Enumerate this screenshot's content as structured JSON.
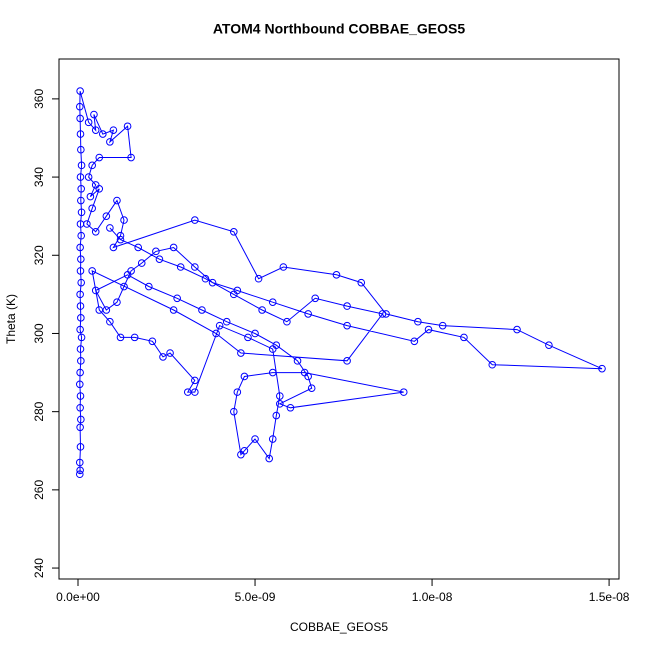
{
  "chart_data": {
    "type": "line",
    "markers": true,
    "title": "ATOM4 Northbound COBBAE_GEOS5",
    "x_label": "COBBAE_GEOS5",
    "y_label": "Theta (K)",
    "color": "#0000ff",
    "xlim": [
      -5.37e-10,
      1.528e-08
    ],
    "xticks": [
      {
        "value": 0,
        "label": "0.0e+00"
      },
      {
        "value": 5e-09,
        "label": "5.0e-09"
      },
      {
        "value": 1e-08,
        "label": "1.0e-08"
      },
      {
        "value": 1.5e-08,
        "label": "1.5e-08"
      }
    ],
    "ylim": [
      237.2,
      370.2
    ],
    "yticks": [
      240,
      260,
      280,
      300,
      320,
      340,
      360
    ],
    "x": [
      5e-11,
      6e-11,
      5e-11,
      7e-11,
      6e-11,
      8e-11,
      6e-11,
      7e-11,
      5e-11,
      6e-11,
      8e-11,
      7e-11,
      1e-10,
      6e-11,
      8e-11,
      7e-11,
      6e-11,
      9e-11,
      7e-11,
      8e-11,
      6e-11,
      9e-11,
      7e-11,
      1e-10,
      8e-11,
      9e-11,
      7e-11,
      1e-10,
      8e-11,
      7e-11,
      6e-11,
      5e-11,
      6e-11,
      3e-10,
      5e-10,
      4.5e-10,
      7e-10,
      1e-09,
      9e-10,
      1.4e-09,
      1.5e-09,
      6e-10,
      4e-10,
      3e-10,
      5e-10,
      3.5e-10,
      6e-10,
      4e-10,
      2.5e-10,
      5e-10,
      8e-10,
      1.1e-09,
      1.3e-09,
      1.2e-09,
      1e-09,
      3.3e-09,
      4.4e-09,
      5.1e-09,
      5.8e-09,
      7.3e-09,
      8e-09,
      8.7e-09,
      9.6e-09,
      1.03e-08,
      1.24e-08,
      1.33e-08,
      1.48e-08,
      1.17e-08,
      1.09e-08,
      9.9e-09,
      9.5e-09,
      7.6e-09,
      6.5e-09,
      5.5e-09,
      4.5e-09,
      3.8e-09,
      3.3e-09,
      2.7e-09,
      2.2e-09,
      1.8e-09,
      1.5e-09,
      1.3e-09,
      1.1e-09,
      8e-10,
      5e-10,
      1.4e-09,
      2e-09,
      2.8e-09,
      3.5e-09,
      4.2e-09,
      5e-09,
      5.6e-09,
      6.2e-09,
      6.5e-09,
      6.6e-09,
      5.7e-09,
      6e-09,
      9.2e-09,
      6.4e-09,
      5.5e-09,
      4.7e-09,
      4.5e-09,
      4.4e-09,
      4.6e-09,
      4.7e-09,
      5e-09,
      5.4e-09,
      5.5e-09,
      5.6e-09,
      5.7e-09,
      5.5e-09,
      4.8e-09,
      4e-09,
      3.3e-09,
      3.1e-09,
      3.3e-09,
      2.6e-09,
      2.4e-09,
      2.1e-09,
      1.6e-09,
      1.2e-09,
      9e-10,
      6e-10,
      4e-10,
      2.7e-09,
      3.9e-09,
      4.6e-09,
      7.6e-09,
      8.6e-09,
      7.6e-09,
      6.7e-09,
      5.9e-09,
      5.2e-09,
      4.4e-09,
      3.6e-09,
      2.9e-09,
      2.3e-09,
      1.7e-09,
      1.2e-09,
      9e-10
    ],
    "values": [
      264,
      265,
      267,
      271,
      276,
      278,
      281,
      284,
      287,
      290,
      293,
      296,
      299,
      301,
      304,
      307,
      310,
      313,
      316,
      319,
      322,
      325,
      328,
      331,
      334,
      337,
      340,
      343,
      347,
      351,
      355,
      358,
      362,
      354,
      352,
      356,
      351,
      352,
      349,
      353,
      345,
      345,
      343,
      340,
      338,
      335,
      337,
      332,
      328,
      326,
      330,
      334,
      329,
      325,
      322,
      329,
      326,
      314,
      317,
      315,
      313,
      305,
      303,
      302,
      301,
      297,
      291,
      292,
      299,
      301,
      298,
      302,
      305,
      308,
      311,
      313,
      317,
      322,
      321,
      318,
      316,
      312,
      308,
      306,
      311,
      315,
      312,
      309,
      306,
      303,
      300,
      297,
      293,
      289,
      286,
      282,
      281,
      285,
      290,
      290,
      289,
      285,
      280,
      269,
      270,
      273,
      268,
      273,
      279,
      284,
      296,
      299,
      302,
      285,
      285,
      288,
      295,
      294,
      298,
      299,
      299,
      303,
      306,
      316,
      306,
      300,
      295,
      293,
      305,
      307,
      309,
      303,
      306,
      310,
      314,
      317,
      319,
      322,
      324,
      327
    ]
  }
}
